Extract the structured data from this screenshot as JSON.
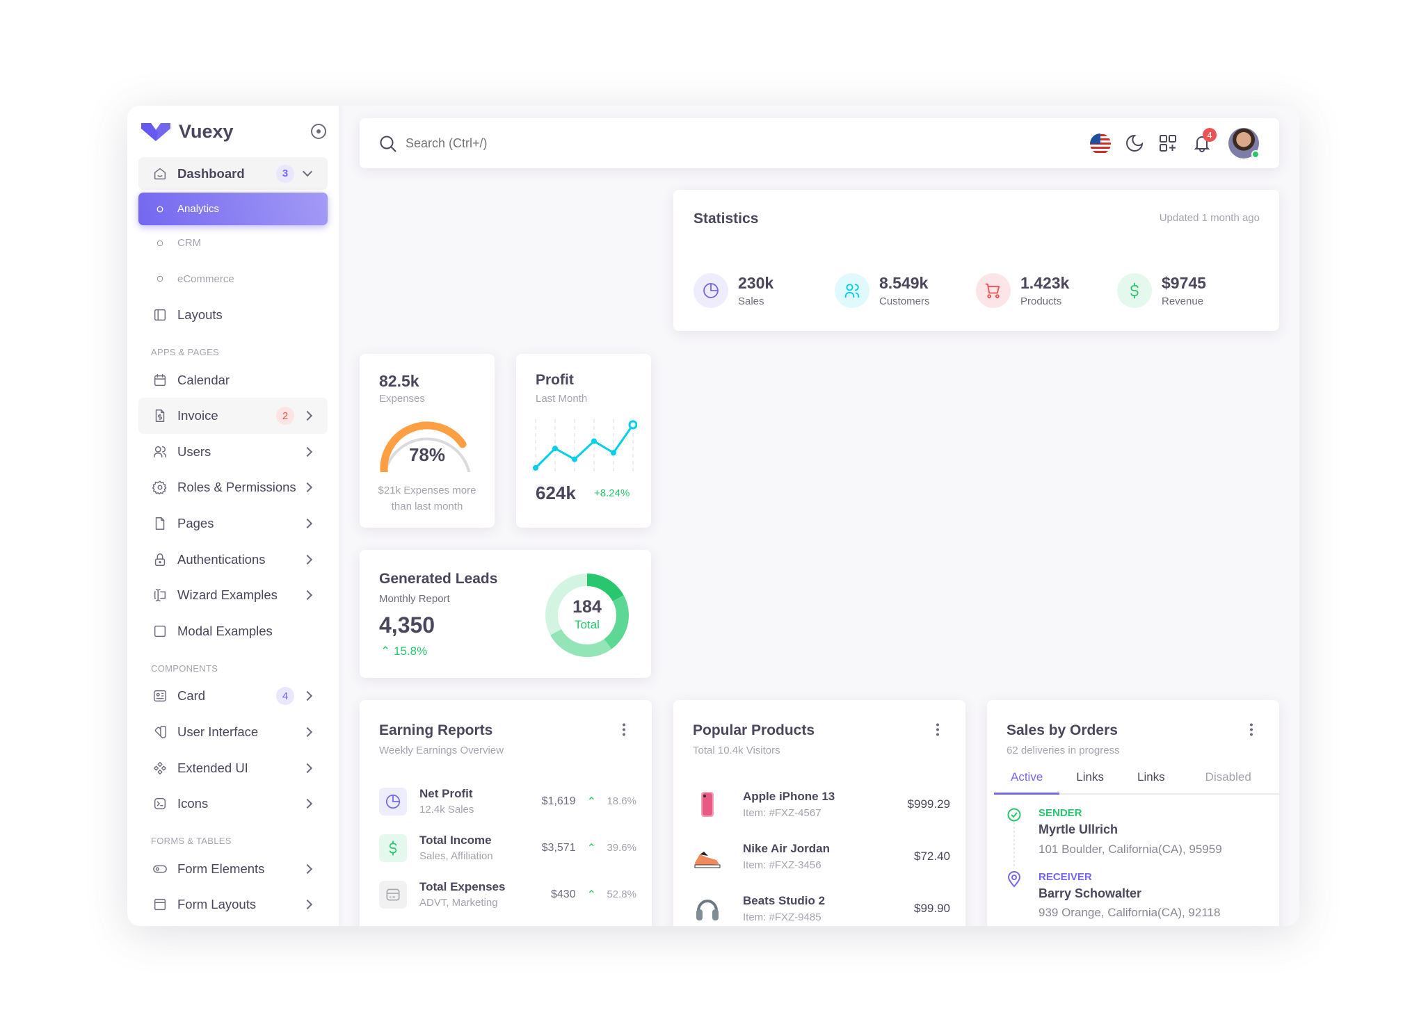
{
  "brand": {
    "name": "Vuexy",
    "color": "#7367f0"
  },
  "sidebar": {
    "sections": [
      {
        "items": [
          {
            "label": "Dashboard",
            "icon": "home-icon",
            "badge": "3",
            "badge_color": "purple",
            "state": "open",
            "chevron": "down"
          },
          {
            "label": "Analytics",
            "icon": "circle-icon",
            "state": "active",
            "sub": true
          },
          {
            "label": "CRM",
            "icon": "circle-icon",
            "sub": true
          },
          {
            "label": "eCommerce",
            "icon": "circle-icon",
            "sub": true
          },
          {
            "label": "Layouts",
            "icon": "layout-icon"
          }
        ]
      },
      {
        "header": "APPS & PAGES",
        "items": [
          {
            "label": "Calendar",
            "icon": "calendar-icon"
          },
          {
            "label": "Invoice",
            "icon": "file-dollar-icon",
            "badge": "2",
            "badge_color": "red",
            "chevron": "right",
            "state": "hover"
          },
          {
            "label": "Users",
            "icon": "users-icon",
            "chevron": "right"
          },
          {
            "label": "Roles & Permissions",
            "icon": "settings-icon",
            "chevron": "right"
          },
          {
            "label": "Pages",
            "icon": "file-icon",
            "chevron": "right"
          },
          {
            "label": "Authentications",
            "icon": "lock-icon",
            "chevron": "right"
          },
          {
            "label": "Wizard Examples",
            "icon": "forms-icon",
            "chevron": "right"
          },
          {
            "label": "Modal Examples",
            "icon": "square-icon"
          }
        ]
      },
      {
        "header": "COMPONENTS",
        "items": [
          {
            "label": "Card",
            "icon": "id-card-icon",
            "badge": "4",
            "badge_color": "purple",
            "chevron": "right"
          },
          {
            "label": "User Interface",
            "icon": "color-swatch-icon",
            "chevron": "right"
          },
          {
            "label": "Extended UI",
            "icon": "components-icon",
            "chevron": "right"
          },
          {
            "label": "Icons",
            "icon": "brand-icon",
            "chevron": "right"
          }
        ]
      },
      {
        "header": "FORMS & TABLES",
        "items": [
          {
            "label": "Form Elements",
            "icon": "toggle-icon",
            "chevron": "right"
          },
          {
            "label": "Form Layouts",
            "icon": "layout-navbar-icon",
            "chevron": "right"
          }
        ]
      }
    ]
  },
  "navbar": {
    "search_placeholder": "Search (Ctrl+/)",
    "notifications_count": "4",
    "icons": [
      "us-flag-icon",
      "moon-icon",
      "grid-icon",
      "bell-icon",
      "avatar"
    ]
  },
  "statistics": {
    "title": "Statistics",
    "updated": "Updated 1 month ago",
    "items": [
      {
        "value": "230k",
        "label": "Sales",
        "icon": "chart-pie-icon",
        "color": "#7367f0",
        "bg": "#eeedfd"
      },
      {
        "value": "8.549k",
        "label": "Customers",
        "icon": "users-icon",
        "color": "#00cfe8",
        "bg": "#e0f9fc"
      },
      {
        "value": "1.423k",
        "label": "Products",
        "icon": "shopping-cart-icon",
        "color": "#ea5455",
        "bg": "#fce5e6"
      },
      {
        "value": "$9745",
        "label": "Revenue",
        "icon": "currency-dollar-icon",
        "color": "#28c76f",
        "bg": "#e5f8ed"
      }
    ]
  },
  "expenses": {
    "value": "82.5k",
    "label": "Expenses",
    "percent": 78,
    "percent_label": "78%",
    "note": "$21k Expenses more than last month",
    "color": "#ff9f43"
  },
  "profit": {
    "title": "Profit",
    "subtitle": "Last Month",
    "value": "624k",
    "change": "+8.24%",
    "sparkline": [
      0,
      45,
      20,
      62,
      35,
      100
    ],
    "color": "#00cfe8"
  },
  "leads": {
    "title": "Generated Leads",
    "subtitle": "Monthly Report",
    "value": "4,350",
    "change": "15.8%",
    "donut_total": "184",
    "donut_label": "Total",
    "segments": [
      17,
      23,
      27,
      33
    ],
    "segment_colors": [
      "#28c76f",
      "#5cd894",
      "#93e4b7",
      "#d4f4e2"
    ]
  },
  "earning": {
    "title": "Earning Reports",
    "subtitle": "Weekly Earnings Overview",
    "rows": [
      {
        "title": "Net Profit",
        "sub": "12.4k Sales",
        "amount": "$1,619",
        "change": "18.6%",
        "icon": "chart-pie-icon",
        "color": "#7367f0",
        "bg": "#eeedfd"
      },
      {
        "title": "Total Income",
        "sub": "Sales, Affiliation",
        "amount": "$3,571",
        "change": "39.6%",
        "icon": "currency-dollar-icon",
        "color": "#28c76f",
        "bg": "#e5f8ed"
      },
      {
        "title": "Total Expenses",
        "sub": "ADVT, Marketing",
        "amount": "$430",
        "change": "52.8%",
        "icon": "credit-card-icon",
        "color": "#a8aaae",
        "bg": "#f1f1f2"
      }
    ]
  },
  "popular": {
    "title": "Popular Products",
    "subtitle": "Total 10.4k Visitors",
    "rows": [
      {
        "name": "Apple iPhone 13",
        "item": "Item: #FXZ-4567",
        "price": "$999.29",
        "icon": "iphone-image"
      },
      {
        "name": "Nike Air Jordan",
        "item": "Item: #FXZ-3456",
        "price": "$72.40",
        "icon": "sneaker-image"
      },
      {
        "name": "Beats Studio 2",
        "item": "Item: #FXZ-9485",
        "price": "$99.90",
        "icon": "headphones-image"
      }
    ]
  },
  "orders": {
    "title": "Sales by Orders",
    "subtitle": "62 deliveries in progress",
    "tabs": [
      "Active",
      "Links",
      "Links",
      "Disabled"
    ],
    "active_tab": 0,
    "sender": {
      "tag": "SENDER",
      "name": "Myrtle Ullrich",
      "address": "101 Boulder, California(CA), 95959"
    },
    "receiver": {
      "tag": "RECEIVER",
      "name": "Barry Schowalter",
      "address": "939 Orange, California(CA), 92118"
    }
  }
}
